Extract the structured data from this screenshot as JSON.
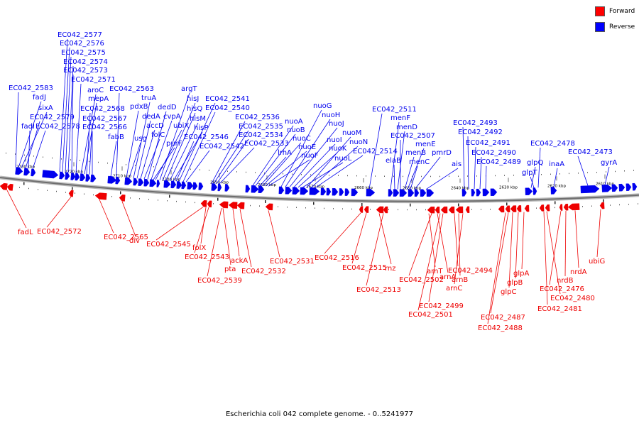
{
  "legend": {
    "forward": "Forward",
    "reverse": "Reverse",
    "forward_color": "#ff0000",
    "reverse_color": "#0000ff"
  },
  "caption": "Escherichia coli 042 complete genome. - 0..5241977",
  "colors": {
    "forward": "#ee0000",
    "reverse": "#0000ee",
    "backbone": "#888888"
  },
  "ticks": [
    "2730 kbp",
    "2720 kbp",
    "2710 kbp",
    "2700 kbp",
    "2690 kbp",
    "2680 kbp",
    "2670 kbp",
    "2660 kbp",
    "2650 kbp",
    "2640 kbp",
    "2630 kbp",
    "2620 kbp",
    "2610 kbp"
  ],
  "reverse_labels": [
    "EC042_2583",
    "fadJ",
    "sixA",
    "EC042_2579",
    "fadI",
    "EC042_2578",
    "EC042_2577",
    "EC042_2576",
    "EC042_2575",
    "EC042_2574",
    "EC042_2573",
    "EC042_2571",
    "aroC",
    "mepA",
    "EC042_2568",
    "EC042_2567",
    "EC042_2566",
    "fabB",
    "EC042_2563",
    "pdxB",
    "usg",
    "truA",
    "dedA",
    "accD",
    "folC",
    "dedD",
    "cvpA",
    "purF",
    "ubiX",
    "argT",
    "hisJ",
    "hisQ",
    "hisM",
    "hisP",
    "EC042_2546",
    "EC042_2541",
    "EC042_2540",
    "EC042_2542",
    "EC042_2536",
    "EC042_2535",
    "EC042_2534",
    "EC042_2533",
    "nuoA",
    "nuoB",
    "lrhA",
    "nuoC",
    "nuoE",
    "nuoF",
    "nuoG",
    "nuoH",
    "nuoJ",
    "nuoI",
    "nuoK",
    "nuoL",
    "nuoM",
    "nuoN",
    "EC042_2514",
    "EC042_2511",
    "menF",
    "elaB",
    "menD",
    "EC042_2507",
    "menB",
    "menE",
    "menC",
    "pmrD",
    "ais",
    "EC042_2493",
    "EC042_2492",
    "EC042_2491",
    "EC042_2490",
    "EC042_2489",
    "glpQ",
    "glpT",
    "EC042_2478",
    "inaA",
    "EC042_2473",
    "gyrA"
  ],
  "forward_labels": [
    "fadL",
    "EC042_2572",
    "EC042_2565",
    "div",
    "EC042_2545",
    "folX",
    "EC042_2543",
    "pta",
    "ackA",
    "EC042_2539",
    "EC042_2532",
    "EC042_2531",
    "EC042_2516",
    "EC042_2515",
    "rnz",
    "EC042_2513",
    "arnT",
    "EC042_2502",
    "arnA",
    "EC042_2499",
    "EC042_2501",
    "EC042_2494",
    "arnB",
    "arnC",
    "glpA",
    "glpB",
    "glpC",
    "EC042_2487",
    "EC042_2488",
    "EC042_2480",
    "EC042_2481",
    "EC042_2476",
    "nrdB",
    "nrdA",
    "ubiG"
  ]
}
